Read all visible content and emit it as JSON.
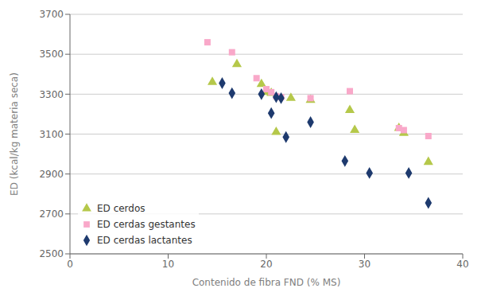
{
  "chart_data": {
    "type": "scatter",
    "xlabel": "Contenido de fibra FND (% MS)",
    "ylabel": "ED (kcal/kg materia seca)",
    "series": [
      {
        "name": "ED cerdos",
        "color": "#b5c84a",
        "marker": "triangle",
        "x": [
          14.5,
          17.0,
          19.5,
          20.0,
          20.5,
          21.0,
          22.5,
          24.5,
          28.5,
          29.0,
          33.5,
          34.0,
          36.5
        ],
        "values": [
          3360,
          3450,
          3350,
          3310,
          3305,
          3110,
          3280,
          3270,
          3220,
          3120,
          3130,
          3105,
          2960
        ]
      },
      {
        "name": "ED cerdas gestantes",
        "color": "#f9a8c9",
        "marker": "square",
        "x": [
          14.0,
          16.5,
          19.0,
          20.0,
          20.5,
          21.0,
          21.5,
          24.5,
          28.5,
          33.5,
          34.0,
          36.5
        ],
        "values": [
          3560,
          3510,
          3380,
          3325,
          3310,
          3290,
          3285,
          3280,
          3315,
          3130,
          3120,
          3090
        ]
      },
      {
        "name": "ED cerdas lactantes",
        "color": "#1e3a6e",
        "marker": "diamond",
        "x": [
          15.5,
          16.5,
          19.5,
          20.5,
          21.0,
          21.5,
          22.0,
          24.5,
          28.0,
          30.5,
          34.5,
          36.5
        ],
        "values": [
          3355,
          3305,
          3300,
          3205,
          3285,
          3280,
          3085,
          3160,
          2965,
          2905,
          2905,
          2755
        ]
      }
    ],
    "xlim": [
      0,
      40
    ],
    "ylim": [
      2500,
      3700
    ],
    "xticks": [
      0,
      10,
      20,
      30,
      40
    ],
    "yticks": [
      2500,
      2700,
      2900,
      3100,
      3300,
      3500,
      3700
    ],
    "grid": "y",
    "legend": "lower left"
  }
}
